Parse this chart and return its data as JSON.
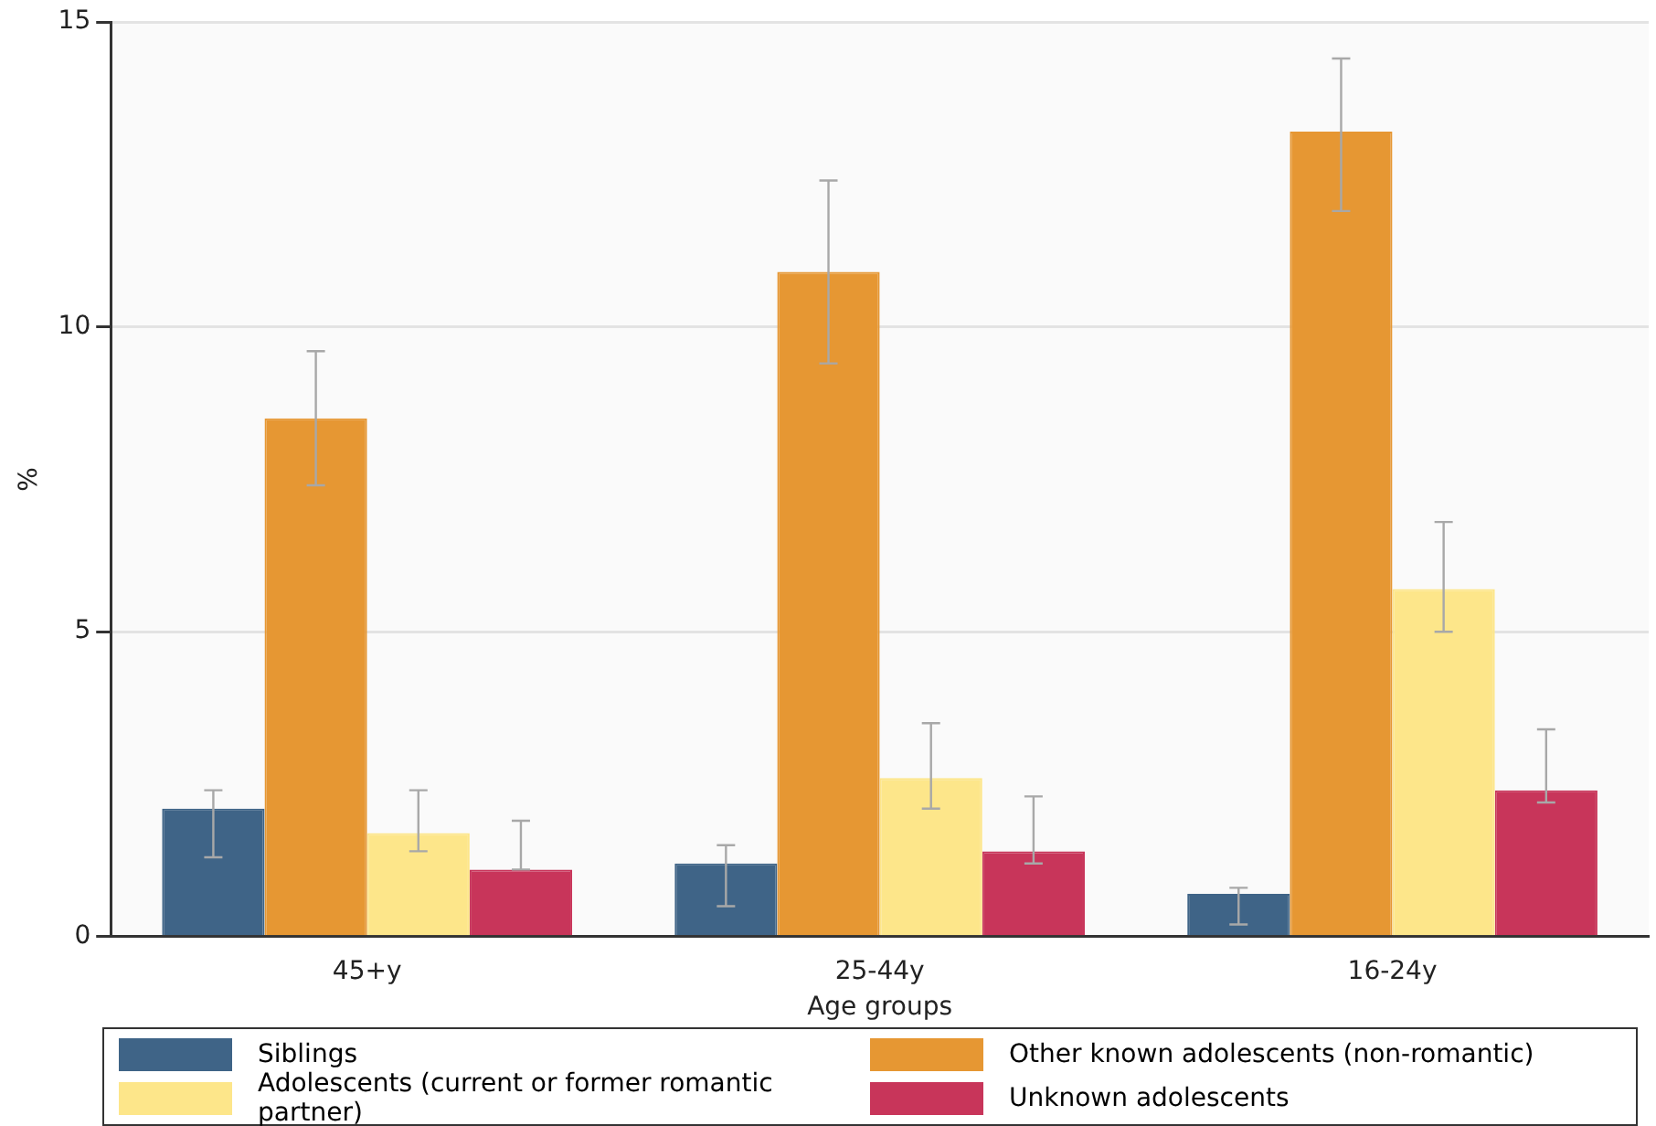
{
  "chart_data": {
    "type": "bar",
    "xlabel": "Age groups",
    "ylabel": "%",
    "categories": [
      "45+y",
      "25-44y",
      "16-24y"
    ],
    "series": [
      {
        "name": "Siblings",
        "color": "#3f6487",
        "values": [
          2.1,
          1.2,
          0.7
        ],
        "errors": [
          [
            1.3,
            2.4
          ],
          [
            0.5,
            1.5
          ],
          [
            0.2,
            0.8
          ]
        ]
      },
      {
        "name": "Other known adolescents (non-romantic)",
        "color": "#e69733",
        "values": [
          8.5,
          10.9,
          13.2
        ],
        "errors": [
          [
            7.4,
            9.6
          ],
          [
            9.4,
            12.4
          ],
          [
            11.9,
            14.4
          ]
        ]
      },
      {
        "name": "Adolescents (current or former romantic partner)",
        "color": "#fde68a",
        "values": [
          1.7,
          2.6,
          5.7
        ],
        "errors": [
          [
            1.4,
            2.4
          ],
          [
            2.1,
            3.5
          ],
          [
            5.0,
            6.8
          ]
        ]
      },
      {
        "name": "Unknown adolescents",
        "color": "#c8355a",
        "values": [
          1.1,
          1.4,
          2.4
        ],
        "errors": [
          [
            1.1,
            1.9
          ],
          [
            1.2,
            2.3
          ],
          [
            2.2,
            3.4
          ]
        ]
      }
    ],
    "ylim": [
      0,
      15
    ],
    "yticks": [
      0,
      5,
      10,
      15
    ],
    "grid": "y",
    "legend": "bottom"
  }
}
